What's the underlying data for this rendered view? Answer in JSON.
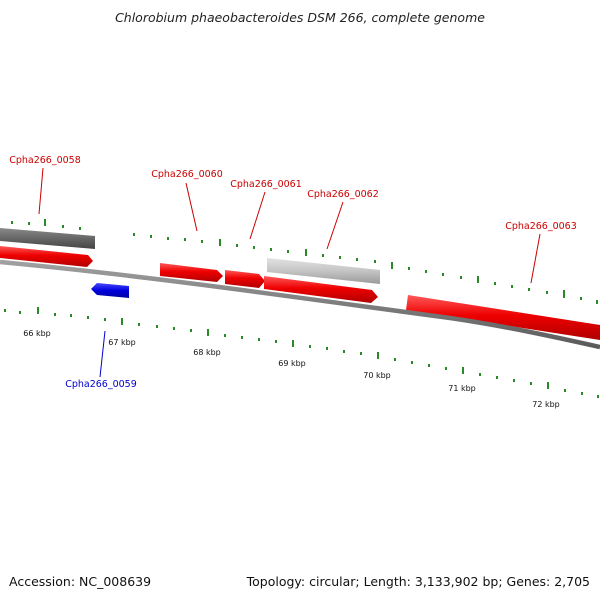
{
  "title": "Chlorobium phaeobacteroides DSM 266, complete genome",
  "footer": {
    "accession": "Accession: NC_008639",
    "summary": "Topology: circular; Length: 3,133,902 bp; Genes: 2,705"
  },
  "colors": {
    "forward_gene": "#ee0000",
    "reverse_gene": "#0000dd",
    "forward_label": "#cc0000",
    "reverse_label": "#0000cc",
    "tick": "#2a8a2a",
    "backbone": "#7a7a7a",
    "dark_feature": "#666666",
    "light_feature": "#c4c4c4"
  },
  "scale": {
    "ticks": [
      {
        "label": "66 kbp"
      },
      {
        "label": "67 kbp"
      },
      {
        "label": "68 kbp"
      },
      {
        "label": "69 kbp"
      },
      {
        "label": "70 kbp"
      },
      {
        "label": "71 kbp"
      },
      {
        "label": "72 kbp"
      }
    ]
  },
  "genes": [
    {
      "id": "Cpha266_0058",
      "strand": "forward"
    },
    {
      "id": "Cpha266_0059",
      "strand": "reverse"
    },
    {
      "id": "Cpha266_0060",
      "strand": "forward"
    },
    {
      "id": "Cpha266_0061",
      "strand": "forward"
    },
    {
      "id": "Cpha266_0062",
      "strand": "forward"
    },
    {
      "id": "Cpha266_0063",
      "strand": "forward"
    }
  ]
}
